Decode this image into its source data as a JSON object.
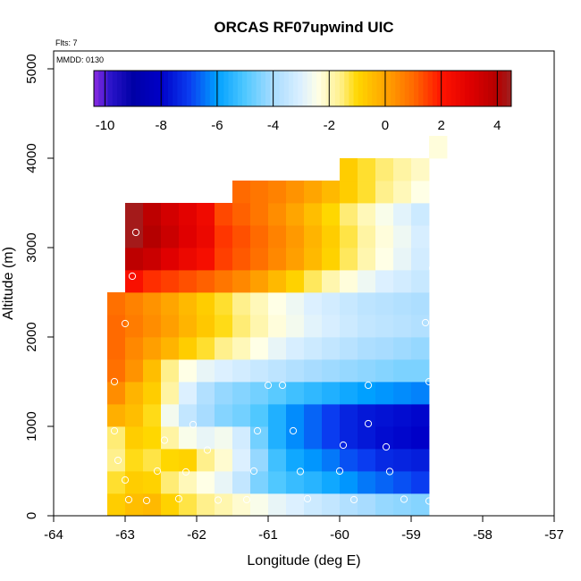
{
  "chart_data": {
    "type": "heatmap",
    "title": "ORCAS RF07upwind UIC",
    "subtitle_flights": "Flts: 7",
    "subtitle_date": "MMDD: 0130",
    "xlabel": "Longitude (deg E)",
    "ylabel": "Altitude (m)",
    "xlim": [
      -64,
      -57
    ],
    "ylim": [
      0,
      5200
    ],
    "x_ticks": [
      -64,
      -63,
      -62,
      -61,
      -60,
      -59,
      -58,
      -57
    ],
    "y_ticks": [
      0,
      1000,
      2000,
      3000,
      4000,
      5000
    ],
    "x_tick_labels": [
      "-64",
      "-63",
      "-62",
      "-61",
      "-60",
      "-59",
      "-58",
      "-57"
    ],
    "y_tick_labels": [
      "0",
      "1000",
      "2000",
      "3000",
      "4000",
      "5000"
    ],
    "colorbar": {
      "range": [
        -10.4,
        4.5
      ],
      "ticks": [
        -10,
        -8,
        -6,
        -4,
        -2,
        0,
        2,
        4
      ],
      "tick_labels": [
        "-10",
        "-8",
        "-6",
        "-4",
        "-2",
        "0",
        "2",
        "4"
      ],
      "stops": [
        {
          "v": -10.4,
          "c": "#8a2be2"
        },
        {
          "v": -9.8,
          "c": "#2a14c8"
        },
        {
          "v": -9.0,
          "c": "#0000a6"
        },
        {
          "v": -8.0,
          "c": "#0000c8"
        },
        {
          "v": -7.0,
          "c": "#0a3cf0"
        },
        {
          "v": -6.0,
          "c": "#00a0ff"
        },
        {
          "v": -5.0,
          "c": "#50c8ff"
        },
        {
          "v": -4.0,
          "c": "#a8dcff"
        },
        {
          "v": -3.0,
          "c": "#dcf0ff"
        },
        {
          "v": -2.4,
          "c": "#ffffe6"
        },
        {
          "v": -1.6,
          "c": "#fff08c"
        },
        {
          "v": -1.0,
          "c": "#ffd700"
        },
        {
          "v": 0.0,
          "c": "#ffa500"
        },
        {
          "v": 1.0,
          "c": "#ff6a00"
        },
        {
          "v": 2.0,
          "c": "#ff1400"
        },
        {
          "v": 3.0,
          "c": "#e00000"
        },
        {
          "v": 4.0,
          "c": "#b40000"
        },
        {
          "v": 4.5,
          "c": "#a02020"
        }
      ]
    },
    "grid": {
      "lon_start": -63.25,
      "lon_step": 0.25,
      "alt_start": 0,
      "alt_step": 250,
      "rows": [
        {
          "row": 0,
          "start_col": 0,
          "values": [
            -0.8,
            -0.5,
            -0.4,
            -0.9,
            -1.3,
            -1.6,
            -1.9,
            -2.2,
            -2.5,
            -2.8,
            -3.0,
            -3.3,
            -3.5,
            -3.8,
            -4.0,
            -4.2,
            -4.3,
            -4.4
          ]
        },
        {
          "row": 1,
          "start_col": 0,
          "values": [
            -1.2,
            -0.8,
            -0.9,
            -1.5,
            -2.0,
            -2.4,
            -2.8,
            -3.5,
            -4.5,
            -5.0,
            -5.3,
            -5.5,
            -5.8,
            -6.1,
            -6.4,
            -6.6,
            -6.8,
            -7.0
          ]
        },
        {
          "row": 2,
          "start_col": 0,
          "values": [
            -1.6,
            -1.1,
            -1.3,
            -1.0,
            -0.9,
            -1.6,
            -2.2,
            -3.0,
            -4.2,
            -5.2,
            -5.8,
            -6.1,
            -6.4,
            -6.8,
            -7.0,
            -7.3,
            -7.4,
            -7.5
          ]
        },
        {
          "row": 3,
          "start_col": 0,
          "values": [
            -1.5,
            -0.8,
            -1.0,
            -1.8,
            -2.5,
            -2.8,
            -2.6,
            -3.2,
            -4.6,
            -5.6,
            -6.2,
            -6.6,
            -7.0,
            -7.4,
            -7.6,
            -7.8,
            -7.9,
            -8.0
          ]
        },
        {
          "row": 4,
          "start_col": 0,
          "values": [
            -0.2,
            -0.5,
            -1.1,
            -2.6,
            -3.5,
            -4.0,
            -4.4,
            -4.6,
            -5.0,
            -5.6,
            -6.2,
            -6.6,
            -7.0,
            -7.4,
            -7.6,
            -7.7,
            -7.8,
            -7.9
          ]
        },
        {
          "row": 5,
          "start_col": 0,
          "values": [
            0.4,
            -0.3,
            -0.8,
            -1.8,
            -3.0,
            -3.8,
            -4.2,
            -4.4,
            -4.6,
            -4.9,
            -5.2,
            -5.4,
            -5.6,
            -5.8,
            -6.0,
            -6.1,
            -6.2,
            -6.3
          ]
        },
        {
          "row": 6,
          "start_col": 0,
          "values": [
            0.9,
            0.3,
            -0.5,
            -1.6,
            -2.4,
            -2.8,
            -3.0,
            -3.2,
            -3.4,
            -3.6,
            -3.8,
            -4.0,
            -4.1,
            -4.2,
            -4.3,
            -4.4,
            -4.5,
            -4.5
          ]
        },
        {
          "row": 7,
          "start_col": 0,
          "values": [
            1.0,
            0.5,
            0.1,
            -0.3,
            -0.8,
            -1.2,
            -1.6,
            -2.0,
            -2.4,
            -2.8,
            -3.1,
            -3.3,
            -3.5,
            -3.7,
            -3.9,
            -4.0,
            -4.1,
            -4.2
          ]
        },
        {
          "row": 8,
          "start_col": 0,
          "values": [
            1.0,
            0.7,
            0.4,
            0.1,
            -0.3,
            -0.7,
            -1.1,
            -1.5,
            -1.9,
            -2.3,
            -2.6,
            -2.9,
            -3.1,
            -3.3,
            -3.5,
            -3.6,
            -3.7,
            -3.8
          ]
        },
        {
          "row": 9,
          "start_col": 0,
          "values": [
            0.9,
            0.6,
            0.3,
            0.0,
            -0.4,
            -0.8,
            -1.2,
            -1.6,
            -2.0,
            -2.4,
            -2.7,
            -3.0,
            -3.2,
            -3.4,
            -3.6,
            -3.7,
            -3.8,
            -3.9
          ]
        },
        {
          "row": 10,
          "start_col": 1,
          "values": [
            2.2,
            1.7,
            1.5,
            1.3,
            1.1,
            0.8,
            0.5,
            0.1,
            -0.4,
            -0.9,
            -1.4,
            -1.9,
            -2.3,
            -2.7,
            -3.0,
            -3.2,
            -3.4
          ]
        },
        {
          "row": 11,
          "start_col": 1,
          "values": [
            3.8,
            3.5,
            3.0,
            2.6,
            2.3,
            1.5,
            1.2,
            0.9,
            0.5,
            0.1,
            -0.4,
            -0.9,
            -1.4,
            -1.9,
            -2.4,
            -2.8,
            -3.2
          ]
        },
        {
          "row": 12,
          "start_col": 1,
          "values": [
            4.4,
            4.0,
            3.5,
            3.0,
            2.6,
            1.6,
            1.3,
            1.0,
            0.6,
            0.2,
            -0.3,
            -0.8,
            -1.3,
            -1.8,
            -2.3,
            -2.7,
            -3.1
          ]
        },
        {
          "row": 13,
          "start_col": 1,
          "values": [
            4.4,
            3.8,
            3.3,
            2.9,
            2.5,
            1.4,
            1.1,
            0.8,
            0.4,
            0.0,
            -0.5,
            -1.0,
            -1.5,
            -2.0,
            -2.5,
            -2.9,
            -3.3
          ]
        },
        {
          "row": 14,
          "start_col": 7,
          "values": [
            1.0,
            0.8,
            0.6,
            0.3,
            0.0,
            -0.4,
            -0.8,
            -1.2,
            -1.6,
            -2.0,
            -2.4
          ]
        },
        {
          "row": 15,
          "start_col": 13,
          "values": [
            -0.8,
            -1.2,
            -1.5,
            -1.8,
            -2.1
          ]
        },
        {
          "row": 16,
          "start_col": 18,
          "values": [
            -2.3
          ]
        }
      ]
    },
    "sample_points": [
      [
        -62.95,
        180
      ],
      [
        -62.7,
        170
      ],
      [
        -62.25,
        190
      ],
      [
        -61.7,
        175
      ],
      [
        -61.3,
        180
      ],
      [
        -60.45,
        190
      ],
      [
        -59.8,
        180
      ],
      [
        -59.1,
        185
      ],
      [
        -58.75,
        165
      ],
      [
        -63.0,
        400
      ],
      [
        -62.55,
        500
      ],
      [
        -62.15,
        490
      ],
      [
        -61.2,
        500
      ],
      [
        -60.55,
        495
      ],
      [
        -60.0,
        500
      ],
      [
        -59.3,
        495
      ],
      [
        -58.6,
        500
      ],
      [
        -63.1,
        620
      ],
      [
        -62.45,
        845
      ],
      [
        -61.85,
        735
      ],
      [
        -61.15,
        950
      ],
      [
        -60.65,
        950
      ],
      [
        -59.95,
        790
      ],
      [
        -59.35,
        770
      ],
      [
        -58.65,
        950
      ],
      [
        -63.15,
        950
      ],
      [
        -62.05,
        1020
      ],
      [
        -59.6,
        1030
      ],
      [
        -63.15,
        1500
      ],
      [
        -61.0,
        1460
      ],
      [
        -60.8,
        1460
      ],
      [
        -59.6,
        1460
      ],
      [
        -58.75,
        1500
      ],
      [
        -63.0,
        2150
      ],
      [
        -58.8,
        2160
      ],
      [
        -62.9,
        2680
      ],
      [
        -58.7,
        2770
      ],
      [
        -62.85,
        3170
      ]
    ]
  }
}
